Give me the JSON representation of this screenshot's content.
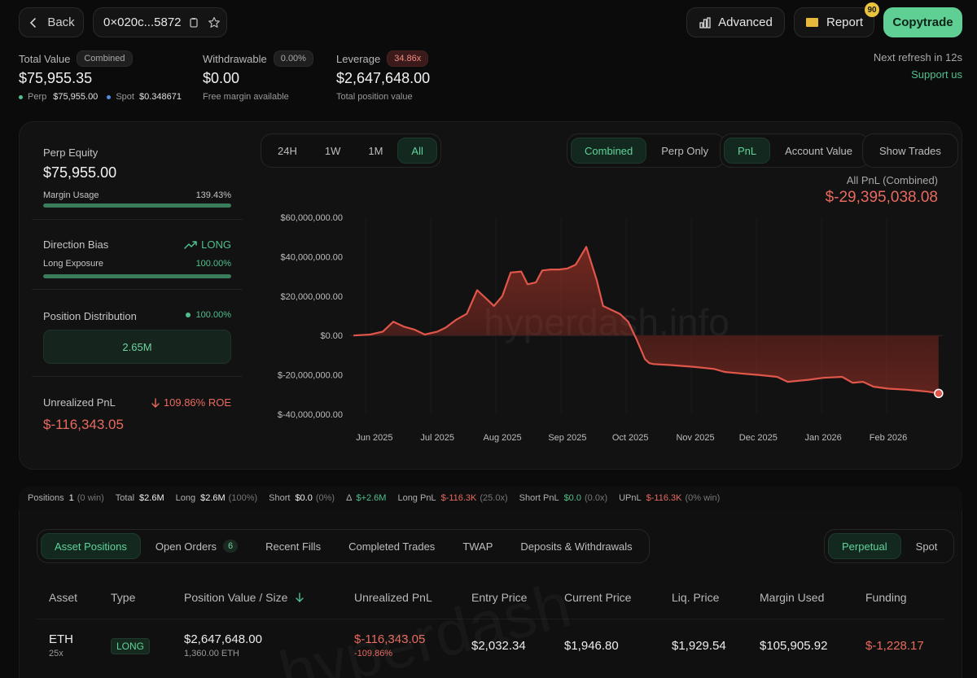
{
  "header": {
    "back_label": "Back",
    "address": "0×020c...5872",
    "advanced_label": "Advanced",
    "report_label": "Report",
    "report_badge": "90",
    "copytrade_label": "Copytrade"
  },
  "summary": {
    "total_value_label": "Total Value",
    "total_value_badge": "Combined",
    "total_value": "$75,955.35",
    "perp_label": "Perp",
    "perp_value": "$75,955.00",
    "spot_label": "Spot",
    "spot_value": "$0.348671",
    "withdrawable_label": "Withdrawable",
    "withdrawable_badge": "0.00%",
    "withdrawable_value": "$0.00",
    "withdrawable_sub": "Free margin available",
    "leverage_label": "Leverage",
    "leverage_badge": "34.86x",
    "leverage_value": "$2,647,648.00",
    "leverage_sub": "Total position value",
    "refresh_text": "Next refresh in 12s",
    "support_link": "Support us"
  },
  "left_panel": {
    "perp_equity_label": "Perp Equity",
    "perp_equity_value": "$75,955.00",
    "margin_usage_label": "Margin Usage",
    "margin_usage_value": "139.43%",
    "margin_usage_fill": 1.0,
    "direction_bias_label": "Direction Bias",
    "direction_bias_value": "LONG",
    "long_exposure_label": "Long Exposure",
    "long_exposure_value": "100.00%",
    "long_exposure_fill": 1.0,
    "position_distribution_label": "Position Distribution",
    "position_distribution_value": "100.00%",
    "distribution_bar_value": "2.65M",
    "unrealized_pnl_label": "Unrealized PnL",
    "unrealized_roe": "109.86% ROE",
    "unrealized_pnl_value": "$-116,343.05"
  },
  "chart_controls": {
    "ranges": [
      "24H",
      "1W",
      "1M",
      "All"
    ],
    "active_range": "All",
    "modes": [
      "Combined",
      "Perp Only"
    ],
    "active_mode": "Combined",
    "metrics": [
      "PnL",
      "Account Value"
    ],
    "active_metric": "PnL",
    "show_trades_label": "Show Trades"
  },
  "chart_data": {
    "type": "area",
    "title": "All PnL (Combined)",
    "headline_value": "$-29,395,038.08",
    "y_ticks": [
      "$60,000,000.00",
      "$40,000,000.00",
      "$20,000,000.00",
      "$0.00",
      "$-20,000,000.00",
      "$-40,000,000.00"
    ],
    "x_ticks": [
      "Jun 2025",
      "Jul 2025",
      "Aug 2025",
      "Sep 2025",
      "Oct 2025",
      "Nov 2025",
      "Dec 2025",
      "Jan 2026",
      "Feb 2026"
    ],
    "ylim": [
      -40000000,
      60000000
    ],
    "watermark": "hyperdash.info",
    "line_color": "#e0564b",
    "series": [
      {
        "x": [
          "2025-05-22",
          "2025-05-30",
          "2025-06-05",
          "2025-06-10",
          "2025-06-15",
          "2025-06-20",
          "2025-06-25",
          "2025-07-01",
          "2025-07-05",
          "2025-07-10",
          "2025-07-15",
          "2025-07-20",
          "2025-07-25",
          "2025-07-28",
          "2025-08-01",
          "2025-08-05",
          "2025-08-10",
          "2025-08-13",
          "2025-08-17",
          "2025-08-20",
          "2025-08-24",
          "2025-08-28",
          "2025-09-01",
          "2025-09-05",
          "2025-09-10",
          "2025-09-15",
          "2025-09-18",
          "2025-09-22",
          "2025-09-26",
          "2025-09-30",
          "2025-10-04",
          "2025-10-08",
          "2025-10-10",
          "2025-10-12",
          "2025-10-20",
          "2025-11-01",
          "2025-11-10",
          "2025-11-15",
          "2025-11-20",
          "2025-11-25",
          "2025-12-01",
          "2025-12-10",
          "2025-12-15",
          "2025-12-20",
          "2025-12-25",
          "2026-01-01",
          "2026-01-10",
          "2026-01-15",
          "2026-01-20",
          "2026-01-25",
          "2026-02-01",
          "2026-02-10",
          "2026-02-15",
          "2026-02-20",
          "2026-02-25"
        ],
        "values": [
          0,
          500000,
          2000000,
          7000000,
          4500000,
          3000000,
          500000,
          2000000,
          4000000,
          8000000,
          11000000,
          23000000,
          18000000,
          15000000,
          20000000,
          32000000,
          32500000,
          26000000,
          27000000,
          33000000,
          33500000,
          33500000,
          34000000,
          36000000,
          45000000,
          28000000,
          15000000,
          13000000,
          11000000,
          7000000,
          -2000000,
          -12000000,
          -14000000,
          -14500000,
          -15000000,
          -16000000,
          -17000000,
          -18500000,
          -19000000,
          -19500000,
          -20000000,
          -21000000,
          -23500000,
          -23000000,
          -22500000,
          -21500000,
          -21000000,
          -24000000,
          -23500000,
          -26000000,
          -27000000,
          -27500000,
          -28000000,
          -28500000,
          -29395038
        ]
      }
    ]
  },
  "stats_bar": {
    "positions_label": "Positions",
    "positions_value": "1",
    "positions_win": "(0 win)",
    "total_label": "Total",
    "total_value": "$2.6M",
    "long_label": "Long",
    "long_value": "$2.6M",
    "long_pct": "(100%)",
    "short_label": "Short",
    "short_value": "$0.0",
    "short_pct": "(0%)",
    "delta_label": "Δ",
    "delta_value": "$+2.6M",
    "long_pnl_label": "Long PnL",
    "long_pnl_value": "$-116.3K",
    "long_pnl_lev": "(25.0x)",
    "short_pnl_label": "Short PnL",
    "short_pnl_value": "$0.0",
    "short_pnl_lev": "(0.0x)",
    "upnl_label": "UPnL",
    "upnl_value": "$-116.3K",
    "upnl_win": "(0% win)"
  },
  "tabs": {
    "items": [
      "Asset Positions",
      "Open Orders",
      "Recent Fills",
      "Completed Trades",
      "TWAP",
      "Deposits & Withdrawals"
    ],
    "open_orders_count": "6",
    "market_types": [
      "Perpetual",
      "Spot"
    ]
  },
  "table": {
    "headers": [
      "Asset",
      "Type",
      "Position Value / Size",
      "Unrealized PnL",
      "Entry Price",
      "Current Price",
      "Liq. Price",
      "Margin Used",
      "Funding"
    ],
    "rows": [
      {
        "asset": "ETH",
        "leverage": "25x",
        "type": "LONG",
        "position_value": "$2,647,648.00",
        "size": "1,360.00 ETH",
        "upnl": "$-116,343.05",
        "upnl_pct": "-109.86%",
        "entry": "$2,032.34",
        "current": "$1,946.80",
        "liq": "$1,929.54",
        "margin": "$105,905.92",
        "funding": "$-1,228.17"
      }
    ],
    "watermark": "hyperdash"
  }
}
